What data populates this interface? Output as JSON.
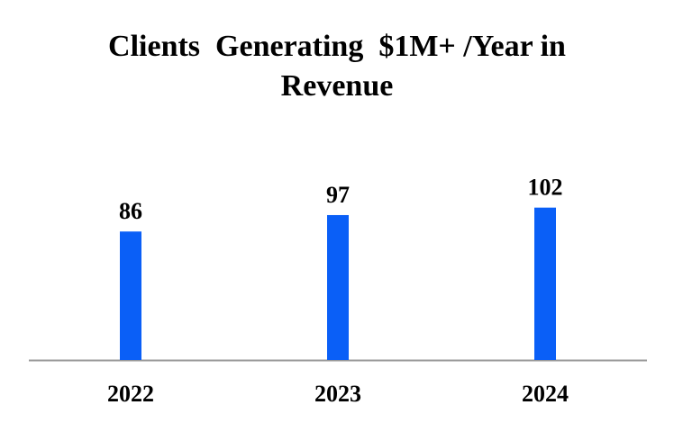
{
  "chart_data": {
    "type": "bar",
    "title": "Clients  Generating  $1M+ /Year in Revenue",
    "categories": [
      "2022",
      "2023",
      "2024"
    ],
    "values": [
      86,
      97,
      102
    ],
    "color": "#0a5ff7"
  }
}
